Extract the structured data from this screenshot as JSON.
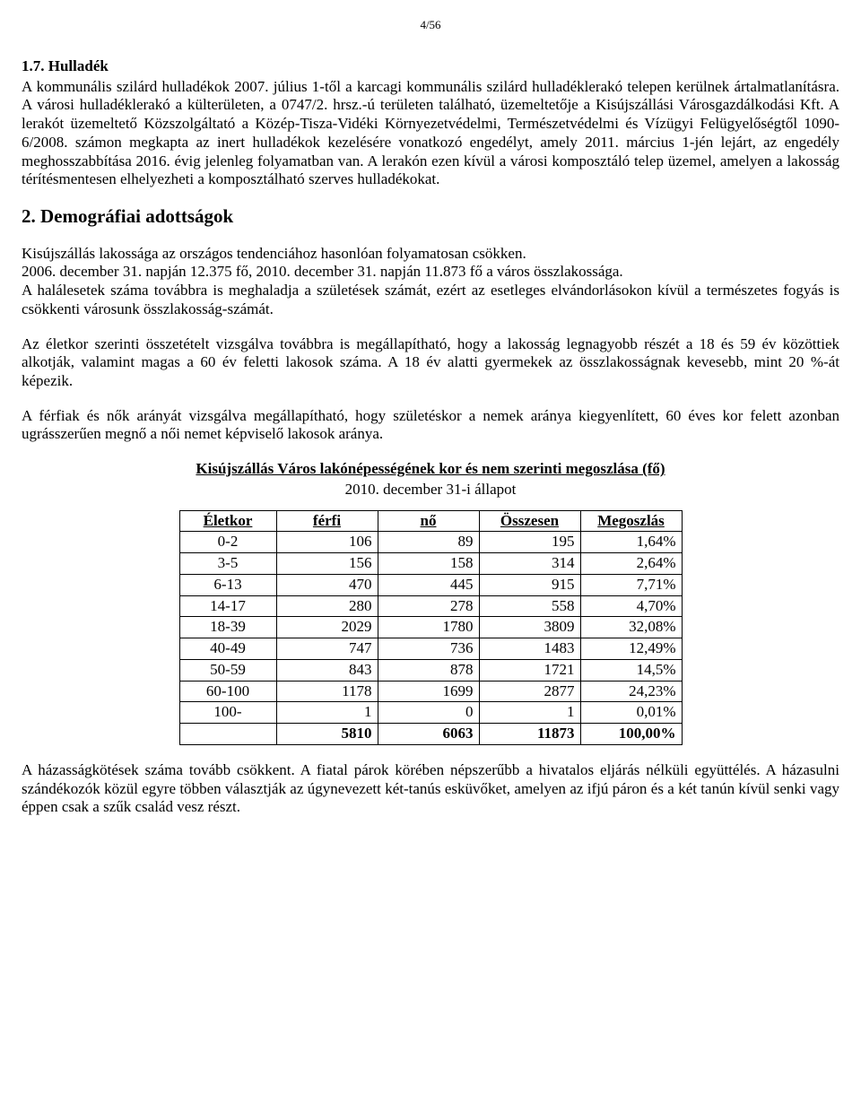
{
  "page_number": "4/56",
  "section17": {
    "heading": "1.7. Hulladék",
    "para": "A kommunális szilárd hulladékok 2007. július 1-től a karcagi kommunális szilárd hulladéklerakó telepen kerülnek ártalmatlanításra. A városi hulladéklerakó a külterületen, a 0747/2. hrsz.-ú területen található, üzemeltetője a Kisújszállási Városgazdálkodási Kft. A lerakót üzemeltető Közszolgáltató a Közép-Tisza-Vidéki Környezetvédelmi, Természetvédelmi és Vízügyi Felügyelőségtől 1090-6/2008. számon megkapta az inert hulladékok kezelésére vonatkozó engedélyt, amely 2011. március 1-jén lejárt, az engedély meghosszabbítása 2016. évig jelenleg folyamatban van.   A lerakón ezen kívül a városi komposztáló telep üzemel, amelyen a lakosság térítésmentesen elhelyezheti a komposztálható szerves hulladékokat."
  },
  "section2": {
    "heading": "2. Demográfiai adottságok",
    "para1": "Kisújszállás lakossága az országos tendenciához hasonlóan folyamatosan csökken.\n2006. december 31. napján 12.375 fő, 2010. december 31. napján 11.873 fő a város összlakossága.\nA halálesetek száma továbbra is meghaladja a születések számát, ezért az esetleges elvándorlásokon kívül a természetes fogyás is csökkenti városunk összlakosság-számát.",
    "para2": "Az életkor szerinti összetételt vizsgálva továbbra is megállapítható, hogy a lakosság legnagyobb részét a 18 és 59 év közöttiek alkotják, valamint magas a 60 év feletti lakosok száma. A 18 év alatti gyermekek az összlakosságnak kevesebb, mint 20 %-át képezik.",
    "para3": "A férfiak és nők arányát vizsgálva megállapítható, hogy születéskor a nemek aránya kiegyenlített, 60 éves kor felett azonban ugrásszerűen megnő a női nemet képviselő lakosok aránya."
  },
  "table": {
    "title": "Kisújszállás Város lakónépességének kor és nem szerinti megoszlása (fő)",
    "subtitle": "2010. december 31-i állapot",
    "columns": [
      "Életkor",
      "férfi",
      "nő",
      "Összesen",
      "Megoszlás"
    ],
    "col_widths": [
      "95px",
      "100px",
      "100px",
      "100px",
      "100px"
    ],
    "rows": [
      [
        "0-2",
        "106",
        "89",
        "195",
        "1,64%"
      ],
      [
        "3-5",
        "156",
        "158",
        "314",
        "2,64%"
      ],
      [
        "6-13",
        "470",
        "445",
        "915",
        "7,71%"
      ],
      [
        "14-17",
        "280",
        "278",
        "558",
        "4,70%"
      ],
      [
        "18-39",
        "2029",
        "1780",
        "3809",
        "32,08%"
      ],
      [
        "40-49",
        "747",
        "736",
        "1483",
        "12,49%"
      ],
      [
        "50-59",
        "843",
        "878",
        "1721",
        "14,5%"
      ],
      [
        "60-100",
        "1178",
        "1699",
        "2877",
        "24,23%"
      ],
      [
        "100-",
        "1",
        "0",
        "1",
        "0,01%"
      ]
    ],
    "total": [
      "",
      "5810",
      "6063",
      "11873",
      "100,00%"
    ]
  },
  "closing_para": "A házasságkötések száma tovább csökkent. A fiatal párok körében népszerűbb a hivatalos eljárás nélküli együttélés. A házasulni szándékozók közül egyre többen választják az úgynevezett két-tanús esküvőket, amelyen az ifjú páron és a két tanún kívül senki vagy éppen csak a szűk család vesz részt."
}
